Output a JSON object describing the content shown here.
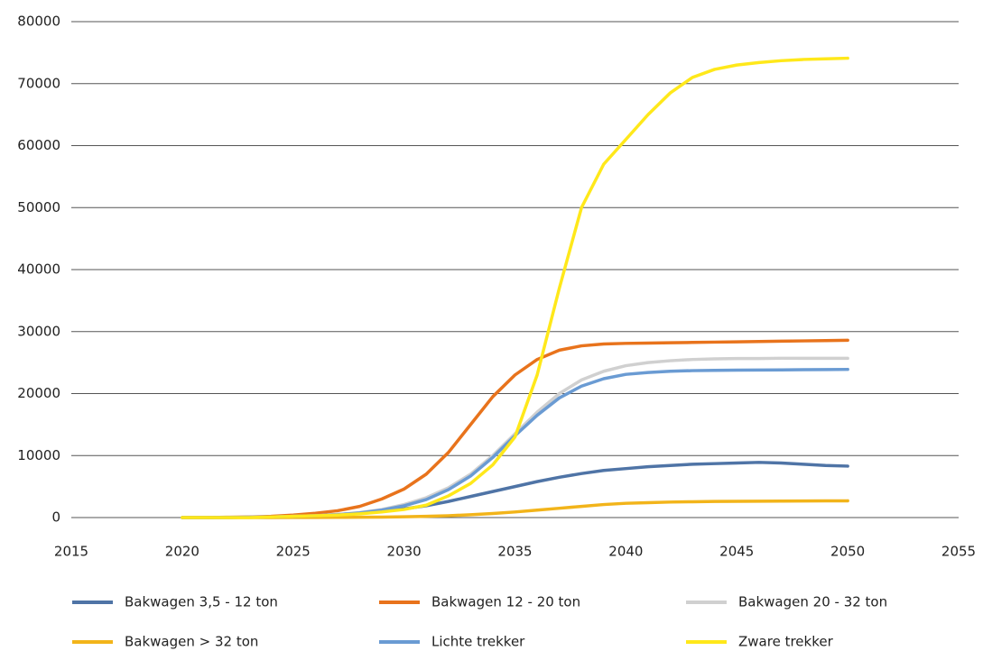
{
  "chart_data": {
    "type": "line",
    "x": [
      2020,
      2021,
      2022,
      2023,
      2024,
      2025,
      2026,
      2027,
      2028,
      2029,
      2030,
      2031,
      2032,
      2033,
      2034,
      2035,
      2036,
      2037,
      2038,
      2039,
      2040,
      2041,
      2042,
      2043,
      2044,
      2045,
      2046,
      2047,
      2048,
      2049,
      2050
    ],
    "series": [
      {
        "name": "Bakwagen 3,5 - 12 ton",
        "color": "#4f74a6",
        "values": [
          0,
          0,
          20,
          50,
          100,
          200,
          300,
          500,
          700,
          1000,
          1400,
          1900,
          2600,
          3400,
          4200,
          5000,
          5800,
          6500,
          7100,
          7600,
          7900,
          8200,
          8400,
          8600,
          8700,
          8800,
          8900,
          8800,
          8600,
          8400,
          8300
        ]
      },
      {
        "name": "Bakwagen 12 - 20 ton",
        "color": "#e8731c",
        "values": [
          0,
          0,
          50,
          100,
          200,
          400,
          700,
          1100,
          1800,
          3000,
          4600,
          7000,
          10500,
          15000,
          19500,
          23000,
          25500,
          27000,
          27700,
          28000,
          28100,
          28150,
          28200,
          28250,
          28300,
          28350,
          28400,
          28450,
          28500,
          28550,
          28600
        ]
      },
      {
        "name": "Bakwagen 20 - 32 ton",
        "color": "#d0d0d0",
        "values": [
          0,
          0,
          20,
          50,
          100,
          200,
          300,
          500,
          800,
          1300,
          2100,
          3200,
          4800,
          7000,
          10000,
          13500,
          17000,
          20000,
          22200,
          23600,
          24500,
          25000,
          25300,
          25500,
          25600,
          25650,
          25650,
          25700,
          25700,
          25700,
          25700
        ]
      },
      {
        "name": "Bakwagen > 32 ton",
        "color": "#f2b41a",
        "values": [
          0,
          0,
          0,
          0,
          0,
          10,
          20,
          30,
          50,
          80,
          120,
          200,
          300,
          450,
          650,
          900,
          1200,
          1500,
          1800,
          2100,
          2300,
          2400,
          2500,
          2550,
          2600,
          2620,
          2640,
          2660,
          2680,
          2690,
          2700
        ]
      },
      {
        "name": "Lichte trekker",
        "color": "#6a9bd3",
        "values": [
          0,
          0,
          20,
          50,
          100,
          200,
          300,
          450,
          750,
          1200,
          1900,
          2900,
          4500,
          6700,
          9700,
          13200,
          16500,
          19300,
          21200,
          22400,
          23100,
          23400,
          23600,
          23700,
          23750,
          23780,
          23800,
          23820,
          23850,
          23880,
          23900
        ]
      },
      {
        "name": "Zware trekker",
        "color": "#ffe81a",
        "values": [
          0,
          0,
          0,
          0,
          100,
          200,
          300,
          400,
          600,
          900,
          1300,
          2000,
          3500,
          5500,
          8500,
          13000,
          23000,
          37000,
          50000,
          57000,
          61000,
          65000,
          68500,
          71000,
          72300,
          73000,
          73400,
          73700,
          73900,
          74000,
          74100
        ]
      }
    ],
    "xlim": [
      2015,
      2055
    ],
    "xticks": [
      2015,
      2020,
      2025,
      2030,
      2035,
      2040,
      2045,
      2050,
      2055
    ],
    "ylim": [
      0,
      80000
    ],
    "yticks": [
      0,
      10000,
      20000,
      30000,
      40000,
      50000,
      60000,
      70000,
      80000
    ],
    "grid": true,
    "legend": "bottom"
  }
}
